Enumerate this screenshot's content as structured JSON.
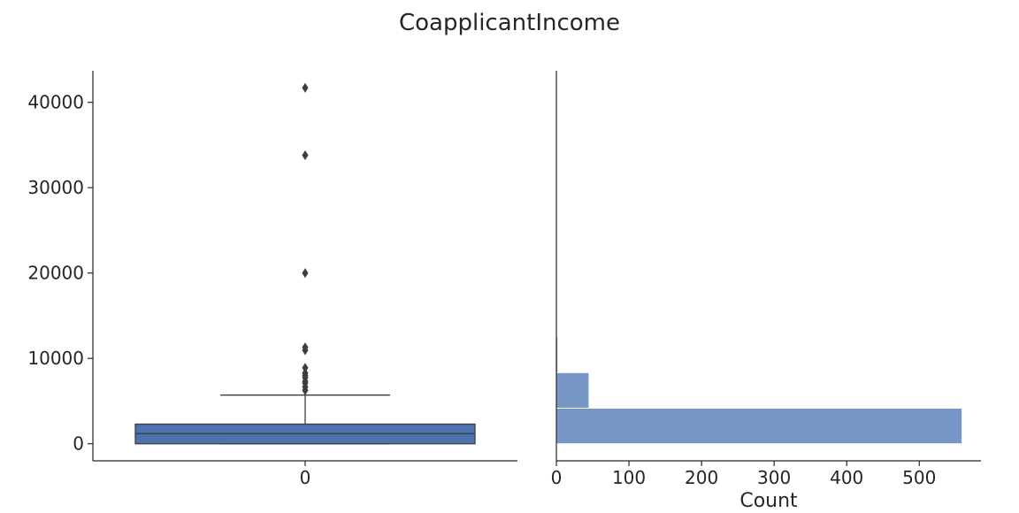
{
  "figure": {
    "title": "CoapplicantIncome"
  },
  "chart_data": [
    {
      "type": "box",
      "categories": [
        "0"
      ],
      "yticks": [
        0,
        10000,
        20000,
        30000,
        40000
      ],
      "ylim": [
        -2000,
        43700
      ],
      "box": {
        "q1": 0,
        "median": 1190,
        "q3": 2300,
        "whisker_low": 0,
        "whisker_high": 5700,
        "color": "#4c72b0"
      },
      "outliers": [
        6250,
        6650,
        7100,
        7300,
        7750,
        8000,
        8300,
        8900,
        10950,
        11300,
        20000,
        33800,
        41700
      ],
      "grid": false
    },
    {
      "type": "bar",
      "orientation": "horizontal",
      "xlabel": "Count",
      "xticks": [
        0,
        100,
        200,
        300,
        400,
        500
      ],
      "xlim": [
        0,
        585
      ],
      "ylim": [
        -2000,
        43700
      ],
      "bins": [
        {
          "y0": 0,
          "y1": 4167,
          "count": 559
        },
        {
          "y0": 4167,
          "y1": 8333,
          "count": 45
        },
        {
          "y0": 8333,
          "y1": 12500,
          "count": 2
        }
      ],
      "color": "#7896c6",
      "grid": false
    }
  ]
}
